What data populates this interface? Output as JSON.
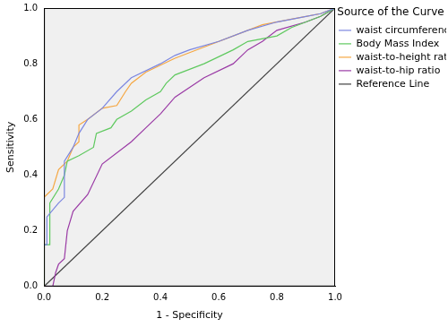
{
  "chart_data": {
    "type": "line",
    "x_label": "1 - Specificity",
    "y_label": "Sensitivity",
    "legend_title": "Source of the Curve",
    "legend": "upper right",
    "grid": false,
    "xlim": [
      0,
      1
    ],
    "ylim": [
      0,
      1
    ],
    "xticks": [
      {
        "value": 0,
        "label": "0.0"
      },
      {
        "value": 0.2,
        "label": "0.2"
      },
      {
        "value": 0.4,
        "label": "0.4"
      },
      {
        "value": 0.6,
        "label": "0.6"
      },
      {
        "value": 0.8,
        "label": "0.8"
      },
      {
        "value": 1,
        "label": "1.0"
      }
    ],
    "yticks": [
      {
        "value": 0,
        "label": "0.0"
      },
      {
        "value": 0.2,
        "label": "0.2"
      },
      {
        "value": 0.4,
        "label": "0.4"
      },
      {
        "value": 0.6,
        "label": "0.6"
      },
      {
        "value": 0.8,
        "label": "0.8"
      },
      {
        "value": 1,
        "label": "1.0"
      }
    ],
    "series": [
      {
        "name": "waist circumference",
        "color": "#7b86e0",
        "x": [
          0,
          0.01,
          0.01,
          0.05,
          0.07,
          0.07,
          0.1,
          0.12,
          0.15,
          0.2,
          0.25,
          0.3,
          0.4,
          0.45,
          0.5,
          0.6,
          0.7,
          0.8,
          0.9,
          0.95,
          1
        ],
        "values": [
          0.15,
          0.15,
          0.25,
          0.3,
          0.32,
          0.45,
          0.5,
          0.55,
          0.6,
          0.64,
          0.7,
          0.75,
          0.8,
          0.83,
          0.85,
          0.88,
          0.92,
          0.95,
          0.97,
          0.98,
          1
        ]
      },
      {
        "name": "Body Mass Index",
        "color": "#5fc95f",
        "x": [
          0,
          0,
          0.02,
          0.02,
          0.05,
          0.07,
          0.08,
          0.12,
          0.17,
          0.18,
          0.23,
          0.25,
          0.3,
          0.35,
          0.4,
          0.42,
          0.45,
          0.5,
          0.55,
          0.65,
          0.7,
          0.8,
          0.85,
          0.9,
          0.95,
          1
        ],
        "values": [
          0,
          0.15,
          0.15,
          0.3,
          0.35,
          0.4,
          0.45,
          0.47,
          0.5,
          0.55,
          0.57,
          0.6,
          0.63,
          0.67,
          0.7,
          0.73,
          0.76,
          0.78,
          0.8,
          0.85,
          0.88,
          0.9,
          0.93,
          0.95,
          0.97,
          1
        ]
      },
      {
        "name": "waist-to-height ratio",
        "color": "#f5a742",
        "x": [
          0,
          0,
          0.03,
          0.05,
          0.08,
          0.1,
          0.12,
          0.12,
          0.15,
          0.2,
          0.25,
          0.28,
          0.3,
          0.35,
          0.45,
          0.55,
          0.65,
          0.75,
          0.85,
          0.95,
          1
        ],
        "values": [
          0,
          0.32,
          0.35,
          0.42,
          0.45,
          0.5,
          0.52,
          0.58,
          0.6,
          0.64,
          0.65,
          0.7,
          0.73,
          0.77,
          0.82,
          0.86,
          0.9,
          0.94,
          0.96,
          0.98,
          1
        ]
      },
      {
        "name": "waist-to-hip ratio",
        "color": "#9a3aa5",
        "x": [
          0,
          0.03,
          0.04,
          0.05,
          0.07,
          0.08,
          0.1,
          0.15,
          0.2,
          0.3,
          0.35,
          0.4,
          0.45,
          0.55,
          0.65,
          0.7,
          0.75,
          0.8,
          0.9,
          0.95,
          1
        ],
        "values": [
          0,
          0,
          0.05,
          0.08,
          0.1,
          0.2,
          0.27,
          0.33,
          0.44,
          0.52,
          0.57,
          0.62,
          0.68,
          0.75,
          0.8,
          0.85,
          0.88,
          0.92,
          0.95,
          0.97,
          1
        ]
      },
      {
        "name": "Reference Line",
        "color": "#404040",
        "x": [
          0,
          1
        ],
        "values": [
          0,
          1
        ]
      }
    ]
  }
}
